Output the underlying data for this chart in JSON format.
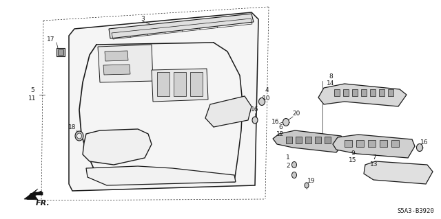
{
  "bg_color": "#ffffff",
  "line_color": "#1a1a1a",
  "diagram_code": "S5A3-B3920",
  "lw": 0.9,
  "thin": 0.5,
  "font_size": 6.5,
  "label_font_size": 7.5
}
